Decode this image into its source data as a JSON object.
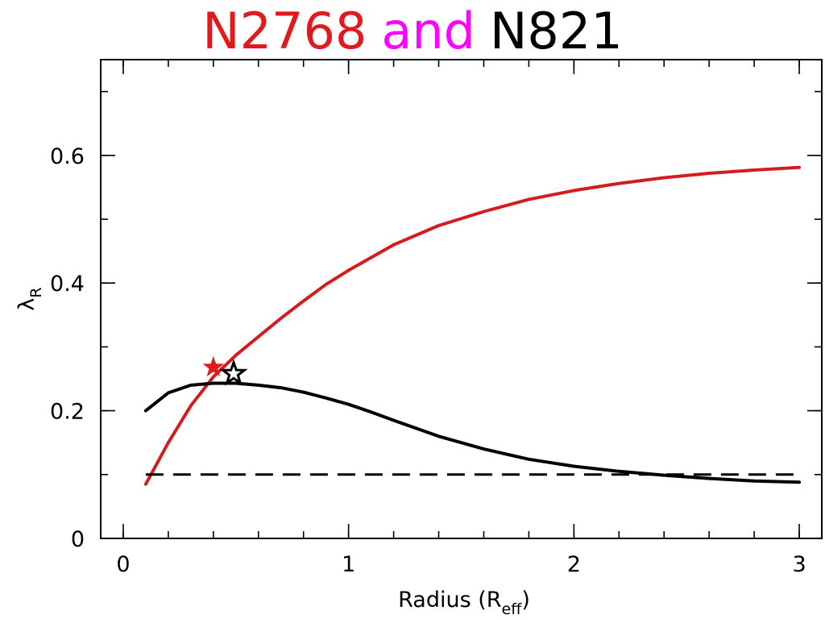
{
  "title": {
    "parts": [
      {
        "text": "N2768",
        "color": "#e31a1c"
      },
      {
        "text": "and",
        "color": "#ff00ff"
      },
      {
        "text": "N821",
        "color": "#000000"
      }
    ]
  },
  "chart_data": {
    "type": "line",
    "title": "N2768 and N821",
    "xlabel": {
      "main": "Radius (R",
      "sub": "eff",
      "close": ")"
    },
    "ylabel": {
      "main": "λ",
      "sub": "R"
    },
    "xlim": [
      -0.1,
      3.1
    ],
    "ylim": [
      0,
      0.75
    ],
    "x_ticks": [
      0,
      1,
      2,
      3
    ],
    "x_tick_labels": [
      "0",
      "1",
      "2",
      "3"
    ],
    "y_ticks": [
      0,
      0.2,
      0.4,
      0.6
    ],
    "y_tick_labels": [
      "0",
      "0.2",
      "0.4",
      "0.6"
    ],
    "x_minor_step": 0.2,
    "y_minor_step": 0.1,
    "grid": false,
    "legend": "none",
    "series": [
      {
        "color": "#d41c1c",
        "style": "solid",
        "x": [
          0.1,
          0.2,
          0.3,
          0.4,
          0.5,
          0.6,
          0.7,
          0.8,
          0.9,
          1.0,
          1.2,
          1.4,
          1.6,
          1.8,
          2.0,
          2.2,
          2.4,
          2.6,
          2.8,
          3.0
        ],
        "y": [
          0.085,
          0.15,
          0.208,
          0.253,
          0.287,
          0.316,
          0.345,
          0.372,
          0.398,
          0.42,
          0.46,
          0.49,
          0.512,
          0.531,
          0.545,
          0.556,
          0.565,
          0.572,
          0.577,
          0.581
        ]
      },
      {
        "color": "#000000",
        "style": "solid",
        "x": [
          0.1,
          0.2,
          0.3,
          0.4,
          0.5,
          0.6,
          0.7,
          0.8,
          0.9,
          1.0,
          1.1,
          1.2,
          1.4,
          1.6,
          1.8,
          2.0,
          2.2,
          2.4,
          2.6,
          2.8,
          3.0
        ],
        "y": [
          0.2,
          0.228,
          0.24,
          0.243,
          0.243,
          0.24,
          0.236,
          0.229,
          0.22,
          0.21,
          0.198,
          0.185,
          0.16,
          0.14,
          0.124,
          0.113,
          0.105,
          0.099,
          0.094,
          0.09,
          0.088
        ]
      },
      {
        "color": "#000000",
        "style": "dashed",
        "x": [
          0.1,
          3.0
        ],
        "y": [
          0.1,
          0.1
        ]
      }
    ],
    "markers": [
      {
        "x": 0.4,
        "y": 0.268,
        "color": "#e31a1c",
        "shape": "star"
      },
      {
        "x": 0.49,
        "y": 0.258,
        "color": "#000000",
        "shape": "star-outline"
      }
    ]
  }
}
